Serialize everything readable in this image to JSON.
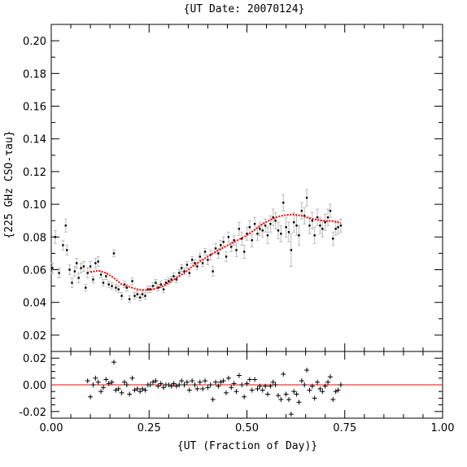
{
  "chart_data": [
    {
      "type": "scatter",
      "panel": "main",
      "title": "{UT Date: 20070124}",
      "ylabel": "{225 GHz CSO-τau}",
      "xlim": [
        0,
        1
      ],
      "ylim": [
        0.01,
        0.21
      ],
      "yticks": [
        "0.02",
        "0.04",
        "0.06",
        "0.08",
        "0.10",
        "0.12",
        "0.14",
        "0.16",
        "0.18",
        "0.20"
      ],
      "series": [
        {
          "style": "points-with-errorbars",
          "color": "#000000",
          "errorbar_color": "#bbbbbb",
          "points": [
            [
              0.003,
              0.061,
              0.003
            ],
            [
              0.01,
              0.08,
              0.004
            ],
            [
              0.02,
              0.058,
              0.003
            ],
            [
              0.03,
              0.075,
              0.003
            ],
            [
              0.037,
              0.087,
              0.004
            ],
            [
              0.04,
              0.072,
              0.003
            ],
            [
              0.047,
              0.06,
              0.003
            ],
            [
              0.053,
              0.052,
              0.003
            ],
            [
              0.06,
              0.059,
              0.003
            ],
            [
              0.065,
              0.064,
              0.003
            ],
            [
              0.07,
              0.055,
              0.003
            ],
            [
              0.076,
              0.061,
              0.003
            ],
            [
              0.083,
              0.062,
              0.003
            ],
            [
              0.088,
              0.049,
              0.002
            ],
            [
              0.093,
              0.058,
              0.003
            ],
            [
              0.1,
              0.062,
              0.003
            ],
            [
              0.107,
              0.054,
              0.002
            ],
            [
              0.113,
              0.064,
              0.003
            ],
            [
              0.12,
              0.065,
              0.003
            ],
            [
              0.127,
              0.057,
              0.002
            ],
            [
              0.133,
              0.052,
              0.002
            ],
            [
              0.14,
              0.056,
              0.002
            ],
            [
              0.147,
              0.051,
              0.002
            ],
            [
              0.155,
              0.05,
              0.002
            ],
            [
              0.16,
              0.07,
              0.002
            ],
            [
              0.165,
              0.049,
              0.002
            ],
            [
              0.172,
              0.048,
              0.002
            ],
            [
              0.18,
              0.044,
              0.002
            ],
            [
              0.187,
              0.051,
              0.002
            ],
            [
              0.193,
              0.049,
              0.002
            ],
            [
              0.2,
              0.042,
              0.002
            ],
            [
              0.207,
              0.053,
              0.002
            ],
            [
              0.213,
              0.044,
              0.002
            ],
            [
              0.22,
              0.045,
              0.002
            ],
            [
              0.227,
              0.043,
              0.002
            ],
            [
              0.233,
              0.045,
              0.002
            ],
            [
              0.24,
              0.044,
              0.002
            ],
            [
              0.247,
              0.048,
              0.002
            ],
            [
              0.253,
              0.048,
              0.002
            ],
            [
              0.26,
              0.05,
              0.002
            ],
            [
              0.267,
              0.052,
              0.002
            ],
            [
              0.273,
              0.049,
              0.002
            ],
            [
              0.28,
              0.051,
              0.002
            ],
            [
              0.287,
              0.048,
              0.002
            ],
            [
              0.293,
              0.052,
              0.002
            ],
            [
              0.3,
              0.053,
              0.002
            ],
            [
              0.307,
              0.054,
              0.002
            ],
            [
              0.313,
              0.056,
              0.002
            ],
            [
              0.32,
              0.054,
              0.002
            ],
            [
              0.327,
              0.058,
              0.002
            ],
            [
              0.333,
              0.061,
              0.002
            ],
            [
              0.34,
              0.059,
              0.002
            ],
            [
              0.347,
              0.063,
              0.002
            ],
            [
              0.353,
              0.058,
              0.002
            ],
            [
              0.36,
              0.066,
              0.002
            ],
            [
              0.367,
              0.064,
              0.002
            ],
            [
              0.373,
              0.062,
              0.002
            ],
            [
              0.38,
              0.068,
              0.002
            ],
            [
              0.387,
              0.064,
              0.002
            ],
            [
              0.393,
              0.071,
              0.002
            ],
            [
              0.4,
              0.066,
              0.003
            ],
            [
              0.407,
              0.069,
              0.003
            ],
            [
              0.413,
              0.059,
              0.003
            ],
            [
              0.42,
              0.073,
              0.003
            ],
            [
              0.427,
              0.07,
              0.003
            ],
            [
              0.433,
              0.075,
              0.003
            ],
            [
              0.44,
              0.077,
              0.003
            ],
            [
              0.447,
              0.068,
              0.003
            ],
            [
              0.453,
              0.08,
              0.003
            ],
            [
              0.46,
              0.074,
              0.003
            ],
            [
              0.467,
              0.078,
              0.003
            ],
            [
              0.473,
              0.072,
              0.004
            ],
            [
              0.48,
              0.085,
              0.004
            ],
            [
              0.487,
              0.079,
              0.004
            ],
            [
              0.493,
              0.071,
              0.004
            ],
            [
              0.5,
              0.082,
              0.004
            ],
            [
              0.507,
              0.086,
              0.004
            ],
            [
              0.513,
              0.078,
              0.004
            ],
            [
              0.52,
              0.088,
              0.004
            ],
            [
              0.527,
              0.082,
              0.004
            ],
            [
              0.533,
              0.085,
              0.004
            ],
            [
              0.54,
              0.084,
              0.004
            ],
            [
              0.547,
              0.087,
              0.004
            ],
            [
              0.553,
              0.081,
              0.005
            ],
            [
              0.56,
              0.088,
              0.005
            ],
            [
              0.567,
              0.092,
              0.005
            ],
            [
              0.573,
              0.09,
              0.005
            ],
            [
              0.58,
              0.084,
              0.005
            ],
            [
              0.587,
              0.082,
              0.005
            ],
            [
              0.593,
              0.101,
              0.005
            ],
            [
              0.6,
              0.086,
              0.006
            ],
            [
              0.607,
              0.083,
              0.006
            ],
            [
              0.613,
              0.072,
              0.01
            ],
            [
              0.62,
              0.089,
              0.006
            ],
            [
              0.627,
              0.087,
              0.006
            ],
            [
              0.633,
              0.081,
              0.006
            ],
            [
              0.64,
              0.096,
              0.005
            ],
            [
              0.647,
              0.093,
              0.005
            ],
            [
              0.653,
              0.104,
              0.005
            ],
            [
              0.66,
              0.087,
              0.005
            ],
            [
              0.667,
              0.09,
              0.005
            ],
            [
              0.673,
              0.081,
              0.005
            ],
            [
              0.68,
              0.092,
              0.005
            ],
            [
              0.687,
              0.087,
              0.005
            ],
            [
              0.693,
              0.085,
              0.005
            ],
            [
              0.7,
              0.089,
              0.005
            ],
            [
              0.707,
              0.092,
              0.005
            ],
            [
              0.713,
              0.096,
              0.004
            ],
            [
              0.72,
              0.079,
              0.004
            ],
            [
              0.727,
              0.085,
              0.004
            ],
            [
              0.733,
              0.086,
              0.004
            ],
            [
              0.74,
              0.087,
              0.004
            ]
          ]
        },
        {
          "style": "fit-line",
          "color": "#ff0000",
          "points": [
            [
              0.1,
              0.0585
            ],
            [
              0.12,
              0.0595
            ],
            [
              0.14,
              0.058
            ],
            [
              0.16,
              0.055
            ],
            [
              0.18,
              0.051
            ],
            [
              0.2,
              0.0495
            ],
            [
              0.22,
              0.048
            ],
            [
              0.24,
              0.0475
            ],
            [
              0.26,
              0.048
            ],
            [
              0.28,
              0.0495
            ],
            [
              0.3,
              0.052
            ],
            [
              0.32,
              0.055
            ],
            [
              0.34,
              0.058
            ],
            [
              0.36,
              0.062
            ],
            [
              0.38,
              0.065
            ],
            [
              0.4,
              0.068
            ],
            [
              0.42,
              0.071
            ],
            [
              0.44,
              0.0735
            ],
            [
              0.46,
              0.076
            ],
            [
              0.48,
              0.0785
            ],
            [
              0.5,
              0.081
            ],
            [
              0.52,
              0.0845
            ],
            [
              0.54,
              0.088
            ],
            [
              0.56,
              0.0905
            ],
            [
              0.58,
              0.0925
            ],
            [
              0.6,
              0.0935
            ],
            [
              0.62,
              0.0938
            ],
            [
              0.64,
              0.093
            ],
            [
              0.66,
              0.0915
            ],
            [
              0.68,
              0.0905
            ],
            [
              0.7,
              0.0898
            ],
            [
              0.72,
              0.0898
            ],
            [
              0.74,
              0.0885
            ]
          ]
        }
      ]
    },
    {
      "type": "scatter",
      "panel": "residuals",
      "xlabel": "{UT (Fraction of Day)}",
      "xlim": [
        0,
        1
      ],
      "ylim": [
        -0.025,
        0.025
      ],
      "xticks": [
        "0.00",
        "0.25",
        "0.50",
        "0.75",
        "1.00"
      ],
      "yticks": [
        "-0.02",
        "0.00",
        "0.02"
      ],
      "zero_line_color": "#ff0000",
      "marker": "plus",
      "points": [
        [
          0.093,
          0.003
        ],
        [
          0.1,
          -0.009
        ],
        [
          0.107,
          0.0
        ],
        [
          0.113,
          0.005
        ],
        [
          0.12,
          0.002
        ],
        [
          0.127,
          -0.005
        ],
        [
          0.133,
          -0.002
        ],
        [
          0.14,
          0.004
        ],
        [
          0.147,
          0.001
        ],
        [
          0.155,
          0.002
        ],
        [
          0.16,
          0.017
        ],
        [
          0.165,
          -0.004
        ],
        [
          0.172,
          -0.003
        ],
        [
          0.18,
          -0.006
        ],
        [
          0.187,
          0.002
        ],
        [
          0.193,
          0.0
        ],
        [
          0.2,
          -0.007
        ],
        [
          0.207,
          0.005
        ],
        [
          0.213,
          -0.004
        ],
        [
          0.22,
          -0.003
        ],
        [
          0.227,
          -0.005
        ],
        [
          0.233,
          -0.003
        ],
        [
          0.24,
          -0.004
        ],
        [
          0.247,
          0.0
        ],
        [
          0.253,
          0.0
        ],
        [
          0.26,
          0.002
        ],
        [
          0.267,
          0.003
        ],
        [
          0.273,
          -0.001
        ],
        [
          0.28,
          0.001
        ],
        [
          0.287,
          -0.002
        ],
        [
          0.293,
          0.0
        ],
        [
          0.3,
          0.0
        ],
        [
          0.307,
          -0.001
        ],
        [
          0.313,
          0.001
        ],
        [
          0.32,
          -0.001
        ],
        [
          0.327,
          0.0
        ],
        [
          0.333,
          0.003
        ],
        [
          0.34,
          0.0
        ],
        [
          0.347,
          0.002
        ],
        [
          0.353,
          -0.004
        ],
        [
          0.36,
          0.003
        ],
        [
          0.367,
          0.0
        ],
        [
          0.373,
          -0.003
        ],
        [
          0.38,
          0.002
        ],
        [
          0.387,
          -0.003
        ],
        [
          0.393,
          0.003
        ],
        [
          0.4,
          -0.002
        ],
        [
          0.407,
          0.0
        ],
        [
          0.413,
          -0.011
        ],
        [
          0.42,
          0.002
        ],
        [
          0.427,
          -0.001
        ],
        [
          0.433,
          0.002
        ],
        [
          0.44,
          0.003
        ],
        [
          0.447,
          -0.006
        ],
        [
          0.453,
          0.005
        ],
        [
          0.46,
          -0.002
        ],
        [
          0.467,
          0.001
        ],
        [
          0.473,
          -0.005
        ],
        [
          0.48,
          0.007
        ],
        [
          0.487,
          0.0
        ],
        [
          0.493,
          -0.009
        ],
        [
          0.5,
          0.001
        ],
        [
          0.507,
          0.004
        ],
        [
          0.513,
          -0.004
        ],
        [
          0.52,
          0.004
        ],
        [
          0.527,
          -0.003
        ],
        [
          0.533,
          -0.001
        ],
        [
          0.54,
          -0.004
        ],
        [
          0.547,
          -0.001
        ],
        [
          0.553,
          -0.007
        ],
        [
          0.56,
          -0.001
        ],
        [
          0.567,
          0.002
        ],
        [
          0.573,
          0.0
        ],
        [
          0.58,
          -0.008
        ],
        [
          0.587,
          -0.011
        ],
        [
          0.593,
          0.008
        ],
        [
          0.6,
          -0.007
        ],
        [
          0.607,
          -0.011
        ],
        [
          0.613,
          -0.022
        ],
        [
          0.62,
          -0.005
        ],
        [
          0.627,
          -0.007
        ],
        [
          0.633,
          -0.013
        ],
        [
          0.64,
          0.003
        ],
        [
          0.647,
          0.0
        ],
        [
          0.653,
          0.011
        ],
        [
          0.66,
          -0.004
        ],
        [
          0.667,
          -0.001
        ],
        [
          0.673,
          -0.01
        ],
        [
          0.68,
          0.002
        ],
        [
          0.687,
          -0.003
        ],
        [
          0.693,
          -0.005
        ],
        [
          0.7,
          -0.001
        ],
        [
          0.707,
          0.002
        ],
        [
          0.713,
          0.006
        ],
        [
          0.72,
          -0.011
        ],
        [
          0.727,
          -0.005
        ],
        [
          0.733,
          -0.004
        ],
        [
          0.74,
          0.0
        ]
      ]
    }
  ]
}
